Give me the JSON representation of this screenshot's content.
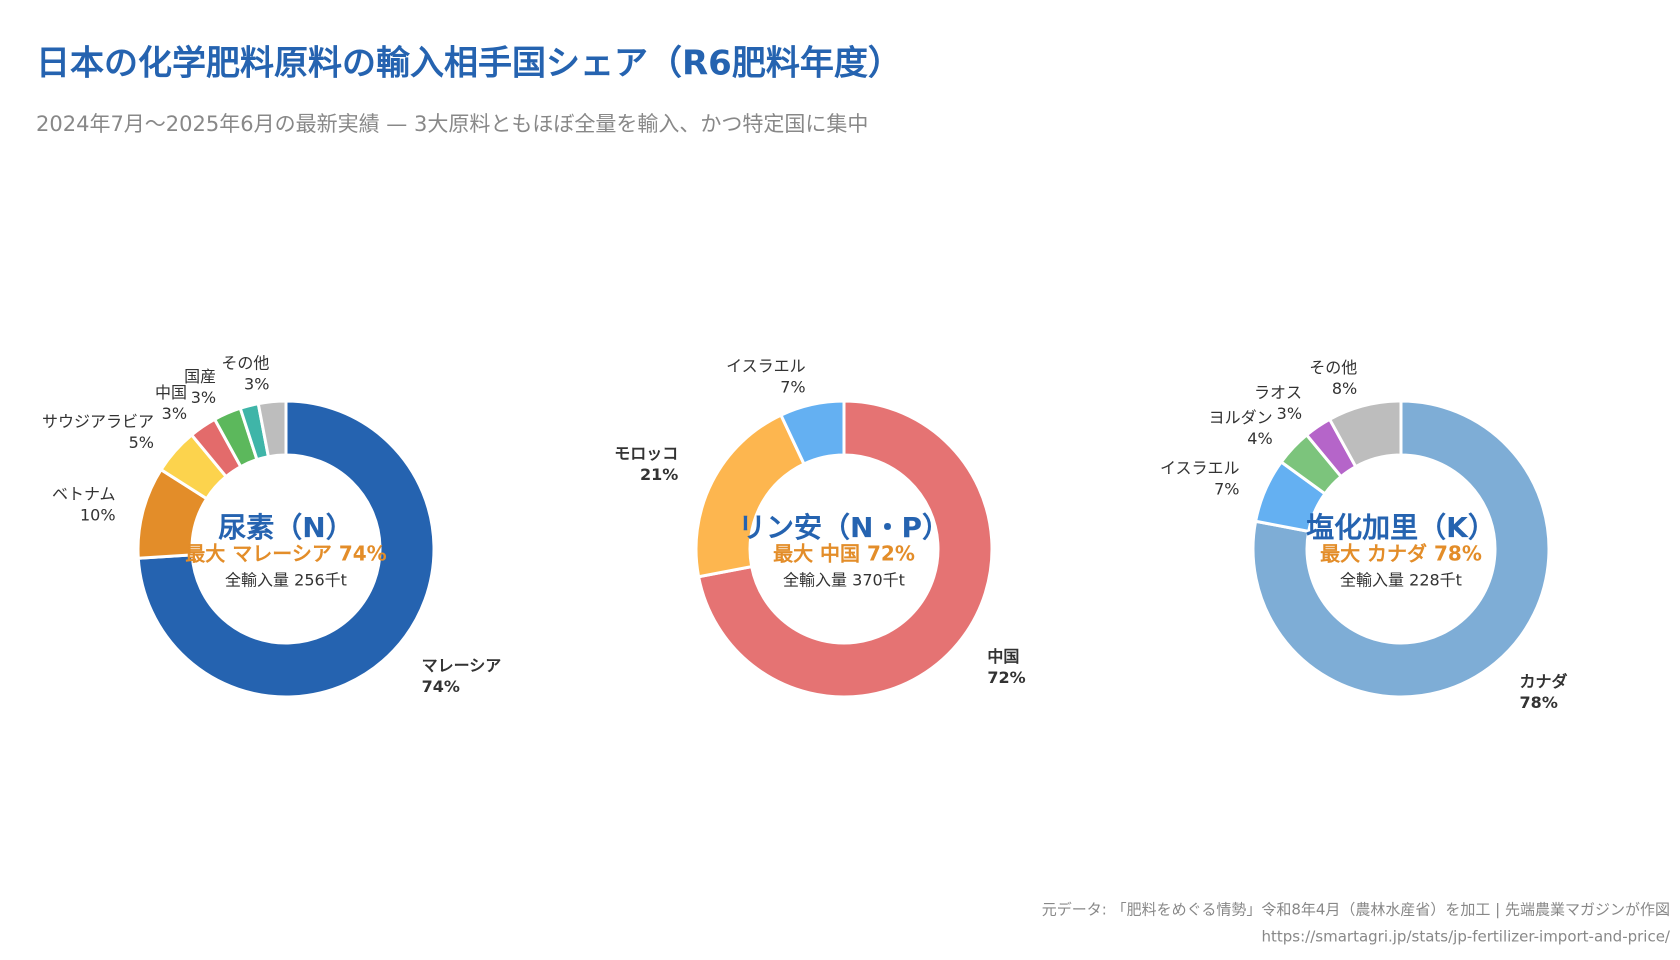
{
  "title": "日本の化学肥料原料の輸入相手国シェア（R6肥料年度）",
  "subtitle": "2024年7月〜2025年6月の最新実績 — 3大原料ともほぼ全量を輸入、かつ特定国に集中",
  "source": [
    "元データ: 「肥料をめぐる情勢」令和8年4月（農林水産省）を加工 | 先端農業マガジンが作図",
    "https://smartagri.jp/stats/jp-fertilizer-import-and-price/"
  ],
  "chart_data": [
    {
      "type": "pie",
      "title": "尿素（N）",
      "headline": "最大 マレーシア 74%",
      "total": "全輸入量 256千t",
      "categories": [
        "マレーシア",
        "ベトナム",
        "サウジアラビア",
        "中国",
        "国産",
        null,
        "その他"
      ],
      "values": [
        74,
        10,
        5,
        3,
        3,
        2,
        3
      ],
      "value_labels": [
        "74%",
        "10%",
        "5%",
        "3%",
        "3%",
        null,
        "3%"
      ],
      "colors": [
        "#2563b0",
        "#e38d29",
        "#fcd34d",
        "#e36b6b",
        "#5cb85c",
        "#3fb5a8",
        "#bdbdbd"
      ]
    },
    {
      "type": "pie",
      "title": "リン安（N・P）",
      "headline": "最大 中国 72%",
      "total": "全輸入量 370千t",
      "categories": [
        "中国",
        "モロッコ",
        "イスラエル"
      ],
      "values": [
        72,
        21,
        7
      ],
      "value_labels": [
        "72%",
        "21%",
        "7%"
      ],
      "colors": [
        "#e57373",
        "#fdb64f",
        "#64b0f2"
      ]
    },
    {
      "type": "pie",
      "title": "塩化加里（K）",
      "headline": "最大 カナダ 78%",
      "total": "全輸入量 228千t",
      "categories": [
        "カナダ",
        "イスラエル",
        "ヨルダン",
        "ラオス",
        "その他"
      ],
      "values": [
        78,
        7,
        4,
        3,
        8
      ],
      "value_labels": [
        "78%",
        "7%",
        "4%",
        "3%",
        "8%"
      ],
      "colors": [
        "#7eadd6",
        "#64b0f2",
        "#7cc47c",
        "#b565c9",
        "#bdbdbd"
      ]
    }
  ]
}
